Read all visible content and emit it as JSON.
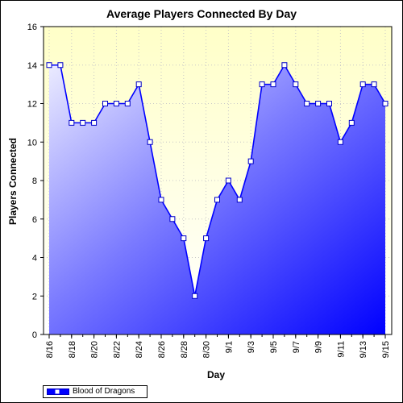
{
  "chart_data": {
    "type": "area",
    "title": "Average Players Connected By Day",
    "xlabel": "Day",
    "ylabel": "Players Connected",
    "ylim": [
      0,
      16
    ],
    "y_ticks": [
      "0",
      "2",
      "4",
      "6",
      "8",
      "10",
      "12",
      "14",
      "16"
    ],
    "x_tick_labels": [
      "8/16",
      "8/18",
      "8/20",
      "8/22",
      "8/24",
      "8/26",
      "8/28",
      "8/30",
      "9/1",
      "9/3",
      "9/5",
      "9/7",
      "9/9",
      "9/11",
      "9/13",
      "9/15"
    ],
    "x": [
      "8/16",
      "8/17",
      "8/18",
      "8/19",
      "8/20",
      "8/21",
      "8/22",
      "8/23",
      "8/24",
      "8/25",
      "8/26",
      "8/27",
      "8/28",
      "8/29",
      "8/30",
      "8/31",
      "9/1",
      "9/2",
      "9/3",
      "9/4",
      "9/5",
      "9/6",
      "9/7",
      "9/8",
      "9/9",
      "9/10",
      "9/11",
      "9/12",
      "9/13",
      "9/14",
      "9/15"
    ],
    "series": [
      {
        "name": "Blood of Dragons",
        "values": [
          14,
          14,
          11,
          11,
          11,
          12,
          12,
          12,
          13,
          10,
          7,
          6,
          5,
          2,
          5,
          7,
          8,
          7,
          9,
          13,
          13,
          14,
          13,
          12,
          12,
          12,
          10,
          11,
          13,
          13,
          12
        ]
      }
    ],
    "grid": true,
    "legend_position": "bottom-left",
    "colors": {
      "line": "#0000ff",
      "area_light": "#e6e6ff",
      "area_dark": "#0000ff",
      "plot_bg_top": "#ffffcc",
      "grid": "#c0c0c0"
    }
  }
}
